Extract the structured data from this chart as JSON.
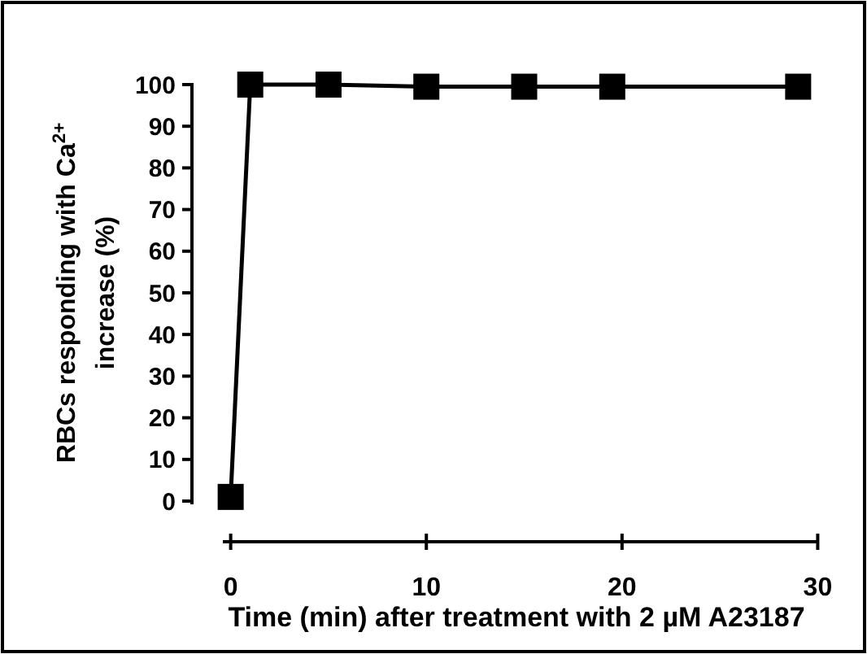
{
  "chart_data": {
    "type": "line",
    "xlabel": "Time (min) after treatment with 2 µM A23187",
    "ylabel": "RBCs responding with Ca$^{2+}$ increase (%)",
    "x": [
      0,
      1,
      5,
      10,
      15,
      19.5,
      29
    ],
    "series": [
      {
        "color": "#000000",
        "values": [
          1,
          100,
          100,
          99.5,
          99.5,
          99.5,
          99.5
        ]
      }
    ],
    "xlim": [
      -0.4,
      30
    ],
    "xticks": [
      0,
      10,
      20,
      30
    ],
    "ylim": [
      0,
      100
    ],
    "yticks": [
      0,
      10,
      20,
      30,
      40,
      50,
      60,
      70,
      80,
      90,
      100
    ],
    "marker": "square",
    "line_style": "solid"
  }
}
